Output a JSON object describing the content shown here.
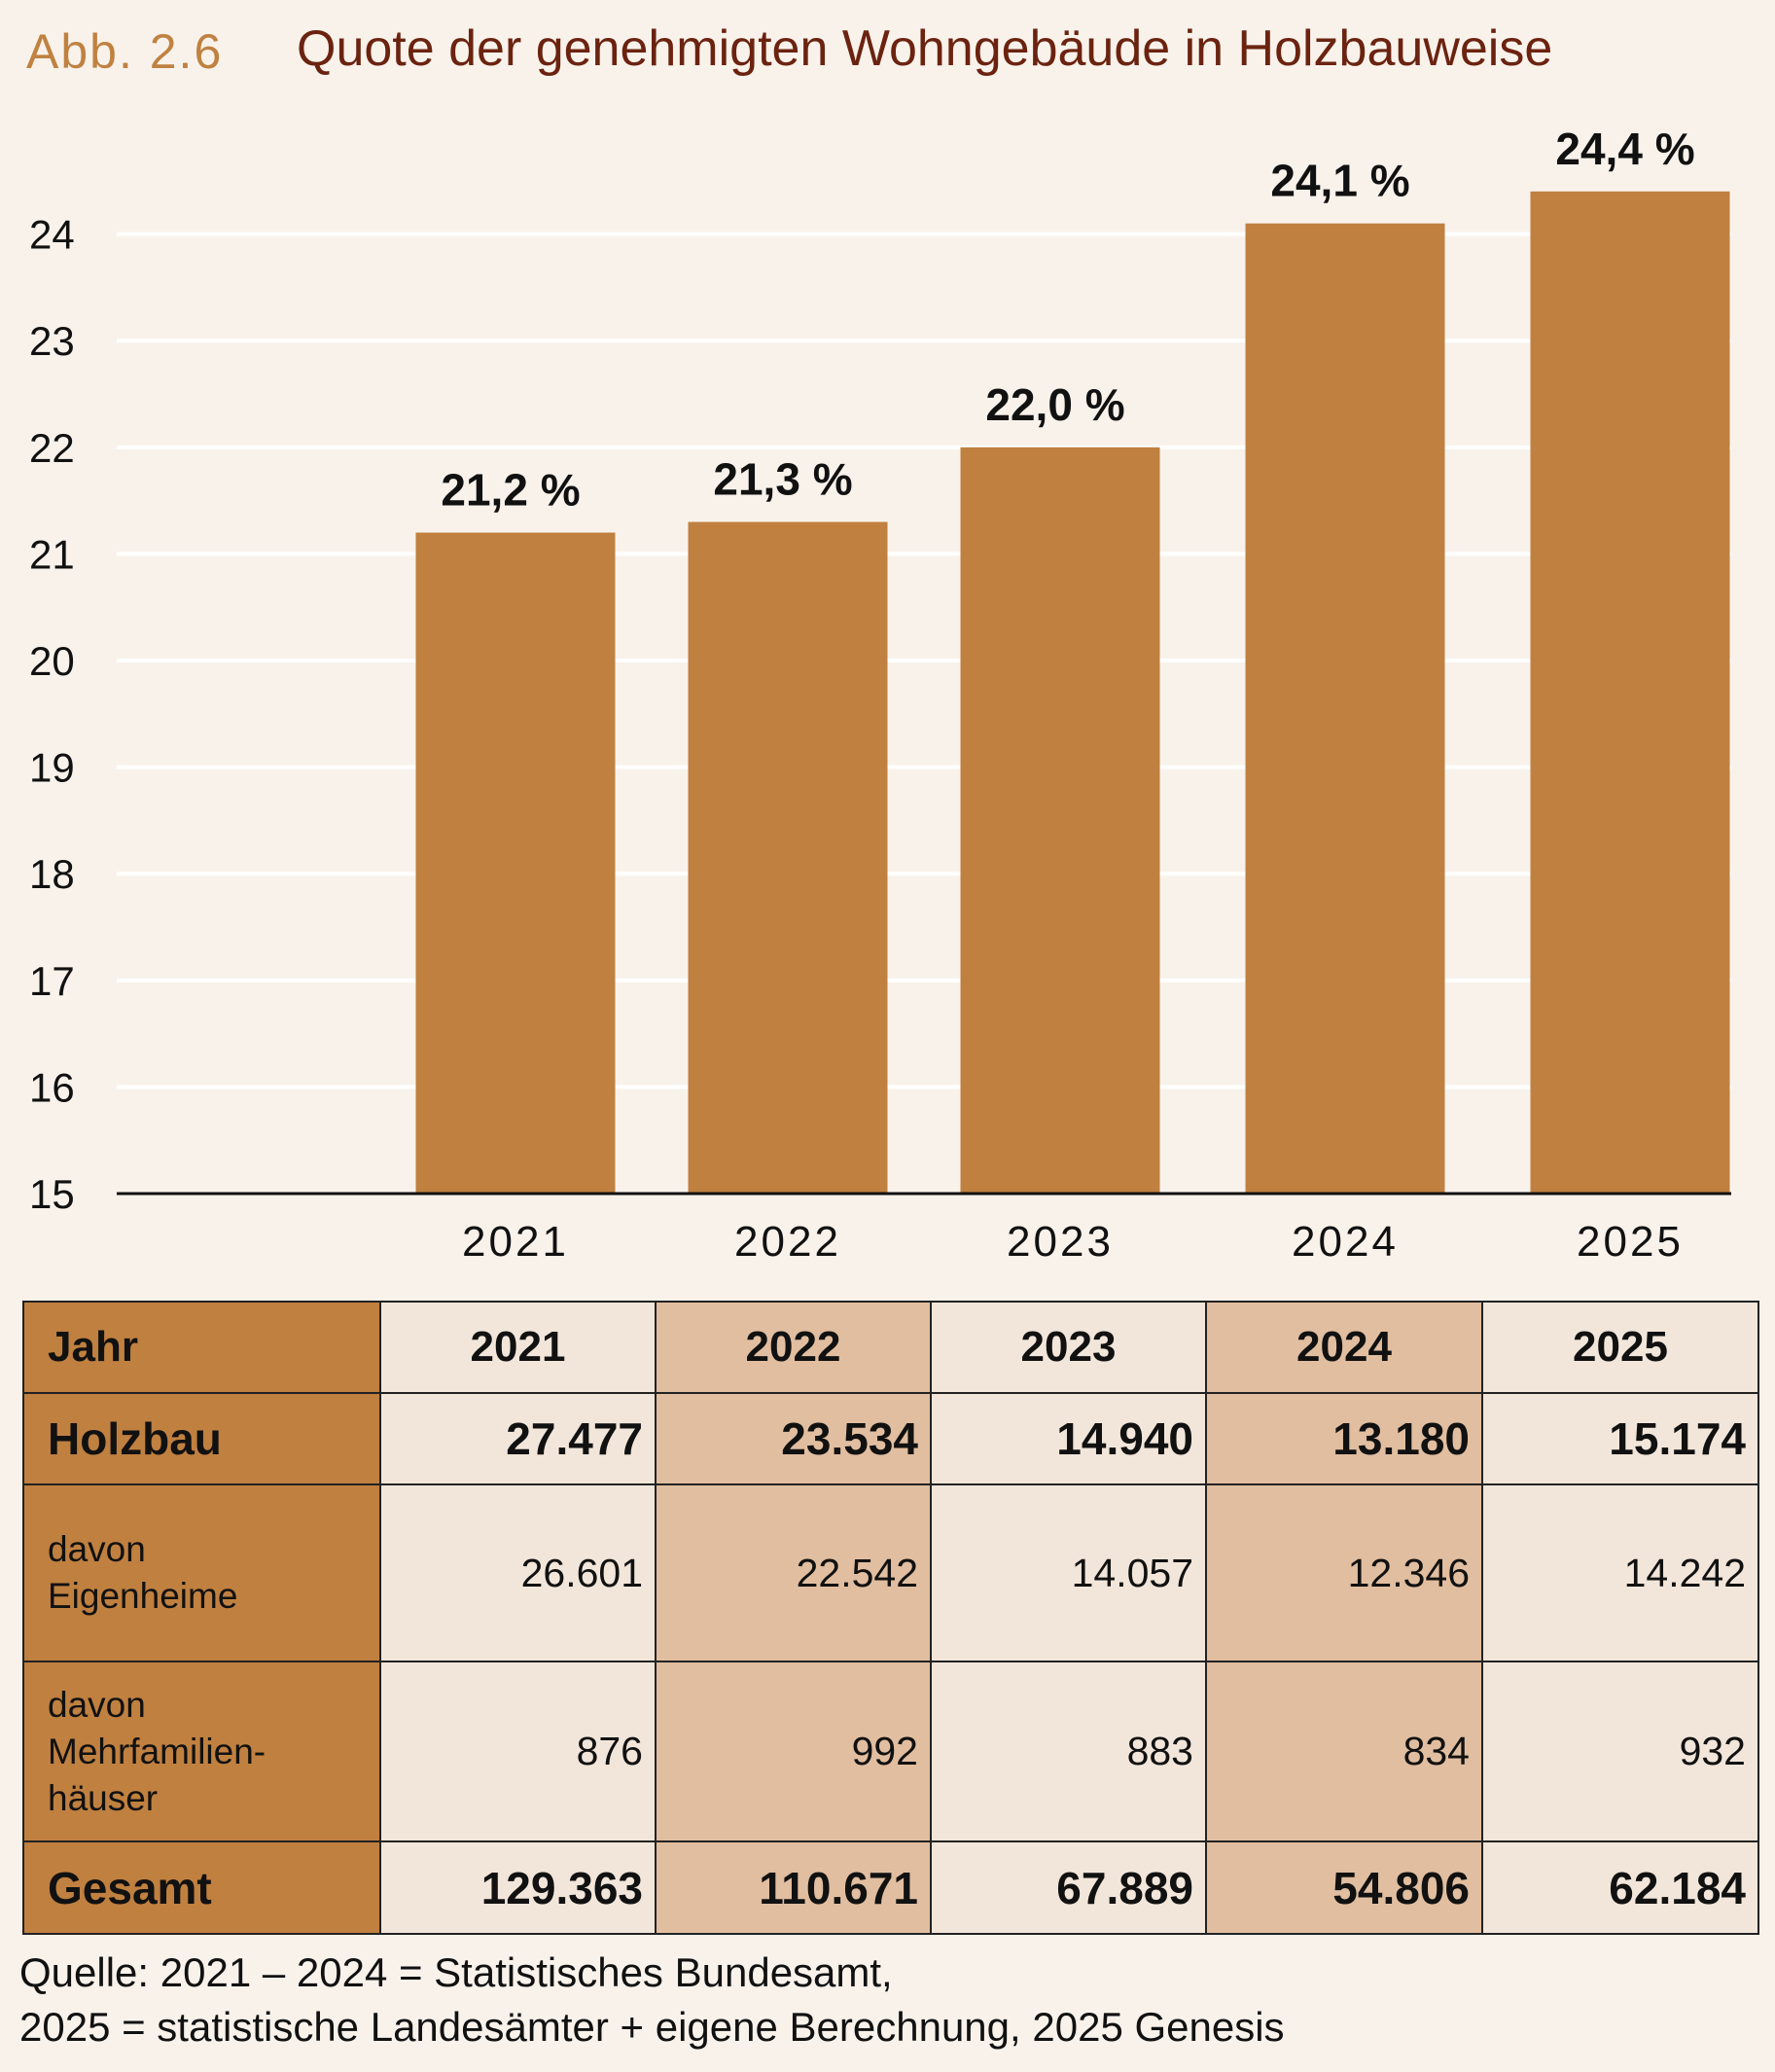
{
  "header": {
    "figure_label": "Abb. 2.6",
    "title": "Quote der genehmigten Wohngebäude in Holzbauweise"
  },
  "chart_data": {
    "type": "bar",
    "title": "Quote der genehmigten Wohngebäude in Holzbauweise",
    "xlabel": "",
    "ylabel": "",
    "categories": [
      "2021",
      "2022",
      "2023",
      "2024",
      "2025"
    ],
    "values": [
      21.2,
      21.3,
      22.0,
      24.1,
      24.4
    ],
    "value_labels": [
      "21,2 %",
      "21,3 %",
      "22,0 %",
      "24,1 %",
      "24,4 %"
    ],
    "ylim": [
      15,
      24.9
    ],
    "yticks": [
      15,
      16,
      17,
      18,
      19,
      20,
      21,
      22,
      23,
      24
    ],
    "grid": true,
    "bar_color": "#c08040",
    "grid_color": "#ffffff"
  },
  "table": {
    "rows": [
      {
        "label": "Jahr",
        "values": [
          "2021",
          "2022",
          "2023",
          "2024",
          "2025"
        ]
      },
      {
        "label": "Holzbau",
        "values": [
          "27.477",
          "23.534",
          "14.940",
          "13.180",
          "15.174"
        ]
      },
      {
        "label_lines": [
          "davon",
          "Eigenheime"
        ],
        "values": [
          "26.601",
          "22.542",
          "14.057",
          "12.346",
          "14.242"
        ]
      },
      {
        "label_lines": [
          "davon",
          "Mehrfamilien-",
          "häuser"
        ],
        "values": [
          "876",
          "992",
          "883",
          "834",
          "932"
        ]
      },
      {
        "label": "Gesamt",
        "values": [
          "129.363",
          "110.671",
          "67.889",
          "54.806",
          "62.184"
        ]
      }
    ]
  },
  "source": {
    "line1": "Quelle: 2021 – 2024 = Statistisches Bundesamt,",
    "line2": "2025 = statistische Landesämter + eigene Berechnung, 2025 Genesis"
  }
}
